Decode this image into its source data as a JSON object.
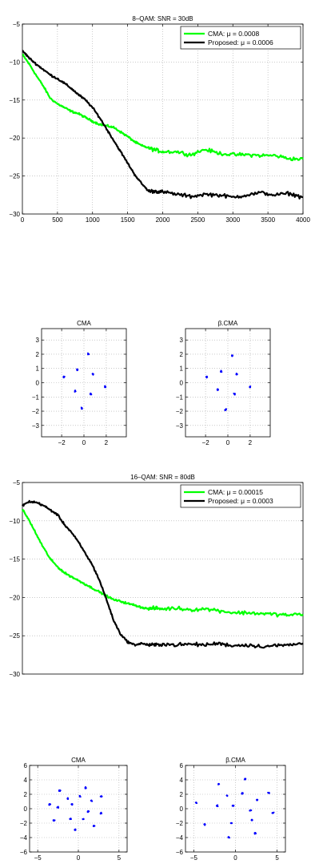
{
  "chart_data": [
    {
      "id": "qam8_curve",
      "type": "line",
      "title": "8–QAM: SNR = 30dB",
      "xlabel": "",
      "ylabel": "",
      "xlim": [
        0,
        4000
      ],
      "ylim": [
        -30,
        -5
      ],
      "xticks": [
        0,
        500,
        1000,
        1500,
        2000,
        2500,
        3000,
        3500,
        4000
      ],
      "yticks": [
        -30,
        -25,
        -20,
        -15,
        -10,
        -5
      ],
      "grid": true,
      "legend": "top-right",
      "series": [
        {
          "name": "CMA: μ = 0.0008",
          "color": "#00ff00",
          "x": [
            0,
            100,
            200,
            300,
            400,
            500,
            600,
            700,
            800,
            900,
            1000,
            1100,
            1200,
            1300,
            1400,
            1500,
            1600,
            1700,
            1800,
            1900,
            2000,
            2200,
            2400,
            2600,
            2800,
            3000,
            3200,
            3400,
            3600,
            3800,
            4000
          ],
          "y": [
            -9,
            -10.3,
            -11.8,
            -13.2,
            -14.8,
            -15.5,
            -16,
            -16.5,
            -16.8,
            -17.3,
            -17.8,
            -18.2,
            -18.4,
            -18.6,
            -19.2,
            -19.8,
            -20.5,
            -21,
            -21.3,
            -21.6,
            -21.8,
            -21.8,
            -22.2,
            -21.5,
            -22,
            -22.2,
            -22.2,
            -22.3,
            -22.3,
            -22.7,
            -22.8
          ]
        },
        {
          "name": "Proposed: μ = 0.0006",
          "color": "#000000",
          "x": [
            0,
            100,
            200,
            300,
            400,
            500,
            600,
            700,
            800,
            900,
            1000,
            1100,
            1200,
            1300,
            1400,
            1500,
            1600,
            1700,
            1800,
            1900,
            2000,
            2200,
            2400,
            2600,
            2800,
            3000,
            3200,
            3400,
            3600,
            3800,
            4000
          ],
          "y": [
            -8.5,
            -9.5,
            -10.3,
            -11,
            -11.7,
            -12.2,
            -12.8,
            -13.5,
            -14.3,
            -15,
            -16,
            -17.3,
            -18.8,
            -20.3,
            -21.8,
            -23.3,
            -24.8,
            -26,
            -27,
            -27,
            -27.1,
            -27.4,
            -27.7,
            -27.4,
            -27.5,
            -27.8,
            -27.5,
            -27.2,
            -27.5,
            -27.3,
            -27.8
          ]
        }
      ]
    },
    {
      "id": "qam8_cma",
      "type": "scatter",
      "title": "CMA",
      "xlim": [
        -3.8,
        3.8
      ],
      "ylim": [
        -3.8,
        3.8
      ],
      "xticks": [
        -2,
        0,
        2
      ],
      "yticks": [
        -3,
        -2,
        -1,
        0,
        1,
        2,
        3
      ],
      "grid": true,
      "color": "#0000ff",
      "points": [
        [
          0.4,
          2
        ],
        [
          -0.6,
          0.9
        ],
        [
          0.8,
          0.6
        ],
        [
          -1.8,
          0.4
        ],
        [
          1.9,
          -0.3
        ],
        [
          -0.8,
          -0.6
        ],
        [
          0.6,
          -0.8
        ],
        [
          -0.2,
          -1.8
        ]
      ]
    },
    {
      "id": "qam8_bcma",
      "type": "scatter",
      "title": "β.CMA",
      "xlim": [
        -3.8,
        3.8
      ],
      "ylim": [
        -3.8,
        3.8
      ],
      "xticks": [
        -2,
        0,
        2
      ],
      "yticks": [
        -3,
        -2,
        -1,
        0,
        1,
        2,
        3
      ],
      "grid": true,
      "color": "#0000ff",
      "points": [
        [
          0.4,
          1.9
        ],
        [
          -0.6,
          0.8
        ],
        [
          0.8,
          0.6
        ],
        [
          -1.9,
          0.4
        ],
        [
          2,
          -0.3
        ],
        [
          -0.9,
          -0.5
        ],
        [
          0.6,
          -0.8
        ],
        [
          -0.2,
          -1.9
        ]
      ]
    },
    {
      "id": "qam16_curve",
      "type": "line",
      "title": "16–QAM: SNR = 80dB",
      "xlabel": "",
      "ylabel": "",
      "xlim": [
        0,
        4000
      ],
      "ylim": [
        -30,
        -5
      ],
      "xticks": [],
      "xticklabels_visible": false,
      "yticks": [
        -30,
        -25,
        -20,
        -15,
        -10,
        -5
      ],
      "grid": true,
      "legend": "top-right",
      "series": [
        {
          "name": "CMA: μ = 0.00015",
          "color": "#00ff00",
          "x": [
            0,
            100,
            200,
            300,
            400,
            500,
            600,
            700,
            800,
            900,
            1000,
            1100,
            1200,
            1300,
            1400,
            1500,
            1600,
            1700,
            1800,
            1900,
            2000,
            2200,
            2400,
            2600,
            2800,
            3000,
            3200,
            3400,
            3600,
            3800,
            4000
          ],
          "y": [
            -8.5,
            -10,
            -11.8,
            -13.5,
            -15,
            -16,
            -16.8,
            -17.3,
            -17.8,
            -18.3,
            -18.8,
            -19.3,
            -19.8,
            -20.3,
            -20.5,
            -20.8,
            -21,
            -21.3,
            -21.5,
            -21.4,
            -21.5,
            -21.4,
            -21.6,
            -21.5,
            -21.7,
            -22,
            -22,
            -22.1,
            -22.2,
            -22.3,
            -22.2
          ]
        },
        {
          "name": "Proposed: μ = 0.0003",
          "color": "#000000",
          "x": [
            0,
            100,
            200,
            300,
            400,
            500,
            600,
            700,
            800,
            900,
            1000,
            1100,
            1200,
            1300,
            1400,
            1500,
            1600,
            1700,
            1800,
            1900,
            2000,
            2200,
            2400,
            2600,
            2800,
            3000,
            3200,
            3400,
            3600,
            3800,
            4000
          ],
          "y": [
            -8,
            -7.5,
            -7.6,
            -8,
            -8.6,
            -9.2,
            -10.5,
            -11.5,
            -12.8,
            -14.3,
            -15.8,
            -17.8,
            -20.3,
            -23,
            -24.8,
            -25.8,
            -26.2,
            -26,
            -26.2,
            -26.2,
            -26.1,
            -26.2,
            -26.1,
            -26.2,
            -26,
            -26.3,
            -26.2,
            -26.4,
            -26.3,
            -26.2,
            -26
          ]
        }
      ]
    },
    {
      "id": "qam16_cma",
      "type": "scatter",
      "title": "CMA",
      "xlim": [
        -6,
        6
      ],
      "ylim": [
        -6,
        6
      ],
      "xticks": [
        -5,
        0,
        5
      ],
      "yticks": [
        -6,
        -4,
        -2,
        0,
        2,
        4,
        6
      ],
      "grid": true,
      "color": "#0000ff",
      "points": [
        [
          -2.3,
          2.5
        ],
        [
          0.9,
          2.9
        ],
        [
          2.8,
          1.7
        ],
        [
          -3.5,
          0.6
        ],
        [
          -1.3,
          1.4
        ],
        [
          0.2,
          1.7
        ],
        [
          1.6,
          1.1
        ],
        [
          -2.5,
          0.2
        ],
        [
          -0.8,
          0.6
        ],
        [
          1.2,
          -0.4
        ],
        [
          2.8,
          -0.6
        ],
        [
          -3.0,
          -1.6
        ],
        [
          -1.0,
          -1.4
        ],
        [
          0.6,
          -1.4
        ],
        [
          -0.4,
          -2.9
        ],
        [
          1.9,
          -2.4
        ]
      ]
    },
    {
      "id": "qam16_bcma",
      "type": "scatter",
      "title": "β.CMA",
      "xlim": [
        -6,
        6
      ],
      "ylim": [
        -6,
        6
      ],
      "xticks": [
        -5,
        0,
        5
      ],
      "yticks": [
        -6,
        -4,
        -2,
        0,
        2,
        4,
        6
      ],
      "grid": true,
      "color": "#0000ff",
      "points": [
        [
          -2.0,
          3.4
        ],
        [
          1.2,
          4.1
        ],
        [
          4.0,
          2.2
        ],
        [
          -4.7,
          0.8
        ],
        [
          -1.0,
          1.8
        ],
        [
          0.8,
          2.1
        ],
        [
          2.6,
          1.2
        ],
        [
          -2.2,
          0.4
        ],
        [
          -0.3,
          0.4
        ],
        [
          1.8,
          -0.2
        ],
        [
          4.5,
          -0.6
        ],
        [
          -3.7,
          -2.2
        ],
        [
          -0.5,
          -2.0
        ],
        [
          2.0,
          -1.6
        ],
        [
          -0.8,
          -4.0
        ],
        [
          2.4,
          -3.4
        ]
      ]
    }
  ]
}
